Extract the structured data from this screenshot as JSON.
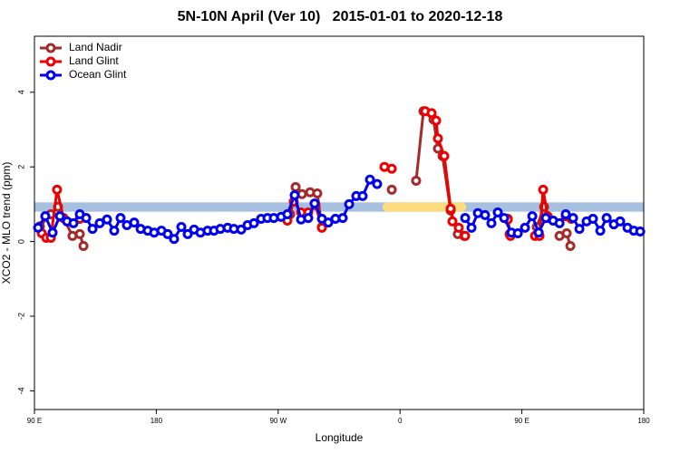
{
  "chart_data": {
    "type": "line",
    "title": "5N-10N April (Ver 10)   2015-01-01 to 2020-12-18",
    "x_label": "Longitude",
    "y_label": "XCO2 - MLO trend (ppm)",
    "xlim": [
      90,
      540
    ],
    "ylim": [
      -4.5,
      5.5
    ],
    "xticks": [
      {
        "value": 90,
        "label": "90 E"
      },
      180,
      {
        "value": 270,
        "label": "90 W"
      },
      {
        "value": 360,
        "label": "0"
      },
      {
        "value": 450,
        "label": "90 E"
      },
      {
        "value": 540,
        "label": "180"
      }
    ],
    "yticks": [
      -4,
      -2,
      0,
      2,
      4
    ],
    "legend": "top-left",
    "reference_band": {
      "range": [
        0.8,
        1.05
      ],
      "color": "#a7c0e0",
      "highlight": [
        [
          347,
          409
        ]
      ],
      "highlight_color": "#fddc7e"
    },
    "series": [
      {
        "name": "Land Nadir",
        "color": "#a52a2a",
        "x": [
          94.0,
          102.1,
          107.4,
          111.4,
          118.1,
          123.5,
          126.2,
          null,
          278.9,
          282.9,
          287.6,
          293.6,
          298.9,
          302.3,
          null,
          353.9,
          null,
          371.9,
          377.3,
          384.7,
          388.0,
          391.4,
          397.4,
          402.7,
          407.4,
          null,
          439.6,
          440.9,
          null,
          461.0,
          466.4,
          469.0,
          null,
          477.8,
          483.1,
          485.8
        ],
        "values": [
          0.41,
          0.73,
          0.93,
          0.63,
          0.15,
          0.2,
          -0.12,
          null,
          0.73,
          1.46,
          1.27,
          1.32,
          1.29,
          0.39,
          null,
          1.39,
          null,
          1.63,
          3.49,
          3.27,
          2.49,
          2.29,
          0.83,
          0.2,
          0.15,
          null,
          0.61,
          0.2,
          null,
          0.39,
          0.93,
          0.63,
          null,
          0.15,
          0.22,
          -0.12
        ]
      },
      {
        "name": "Land Glint",
        "color": "#ee0000",
        "x": [
          95.4,
          98.7,
          102.1,
          106.7,
          111.4,
          null,
          123.5,
          null,
          276.8,
          281.5,
          286.9,
          292.2,
          297.6,
          302.3,
          null,
          348.5,
          353.9,
          null,
          378.6,
          383.3,
          386.7,
          388.0,
          392.7,
          397.4,
          398.7,
          403.4,
          408.1,
          null,
          439.6,
          441.6,
          null,
          459.7,
          463.0,
          465.7,
          469.0,
          null,
          482.4,
          486.5
        ],
        "values": [
          0.22,
          0.1,
          0.1,
          1.39,
          0.63,
          null,
          0.61,
          null,
          0.56,
          1.07,
          0.78,
          0.78,
          0.98,
          0.37,
          null,
          2.0,
          1.95,
          null,
          3.49,
          3.44,
          3.24,
          2.76,
          2.29,
          0.88,
          0.54,
          0.37,
          0.15,
          null,
          0.59,
          0.15,
          null,
          0.15,
          0.15,
          1.39,
          0.68,
          null,
          0.68,
          0.61
        ]
      },
      {
        "name": "Ocean Glint",
        "color": "#0000ee",
        "x": [
          92.7,
          98.0,
          103.4,
          108.8,
          114.1,
          118.8,
          123.5,
          128.2,
          132.9,
          138.2,
          143.6,
          148.9,
          153.6,
          158.3,
          163.7,
          168.4,
          173.7,
          178.4,
          183.8,
          188.4,
          193.1,
          198.5,
          203.2,
          207.9,
          212.6,
          217.9,
          222.6,
          227.3,
          232.7,
          237.3,
          242.7,
          247.4,
          252.1,
          257.4,
          262.1,
          266.8,
          272.2,
          276.8,
          282.2,
          286.9,
          292.2,
          296.9,
          302.3,
          307.0,
          312.3,
          317.7,
          322.4,
          327.7,
          332.4,
          337.8,
          343.1,
          null,
          408.1,
          412.8,
          417.5,
          422.8,
          427.5,
          432.2,
          436.9,
          442.3,
          447.0,
          452.3,
          457.7,
          462.4,
          467.7,
          473.1,
          477.8,
          482.4,
          487.8,
          492.5,
          497.8,
          502.5,
          507.9,
          512.6,
          517.9,
          522.6,
          528.0,
          532.7,
          537.4
        ],
        "values": [
          0.37,
          0.68,
          0.24,
          0.68,
          0.54,
          0.49,
          0.73,
          0.63,
          0.34,
          0.49,
          0.59,
          0.29,
          0.63,
          0.44,
          0.51,
          0.34,
          0.29,
          0.24,
          0.29,
          0.2,
          0.07,
          0.39,
          0.2,
          0.32,
          0.24,
          0.29,
          0.29,
          0.34,
          0.37,
          0.34,
          0.32,
          0.44,
          0.49,
          0.61,
          0.63,
          0.63,
          0.66,
          0.73,
          1.24,
          0.59,
          0.63,
          1.02,
          0.61,
          0.51,
          0.61,
          0.63,
          1.0,
          1.22,
          1.22,
          1.66,
          1.54,
          null,
          0.63,
          0.37,
          0.76,
          0.71,
          0.49,
          0.78,
          0.63,
          0.24,
          0.22,
          0.37,
          0.68,
          0.24,
          0.63,
          0.56,
          0.49,
          0.73,
          0.63,
          0.34,
          0.54,
          0.61,
          0.29,
          0.63,
          0.46,
          0.54,
          0.37,
          0.29,
          0.27
        ]
      }
    ]
  }
}
